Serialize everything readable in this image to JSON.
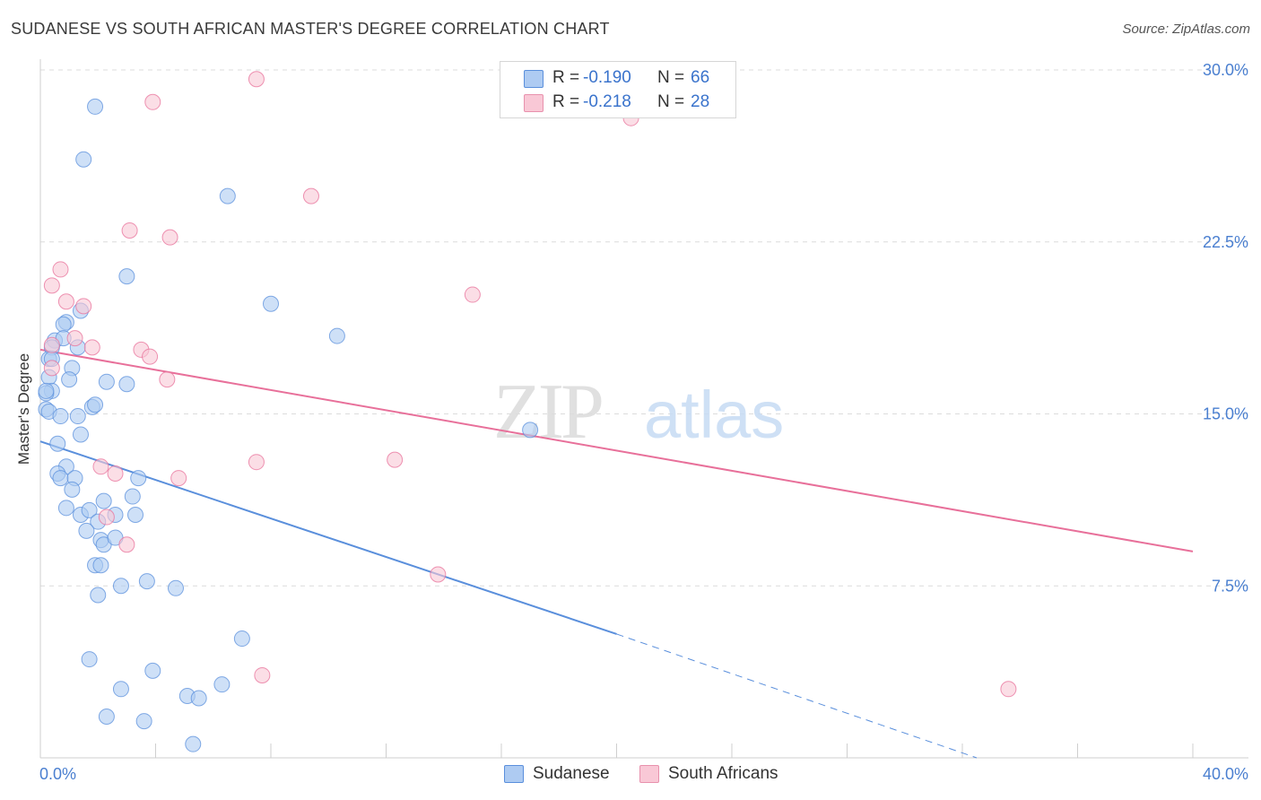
{
  "title": "SUDANESE VS SOUTH AFRICAN MASTER'S DEGREE CORRELATION CHART",
  "source": "Source: ZipAtlas.com",
  "watermark": {
    "zip": "ZIP",
    "atlas": "atlas"
  },
  "legend": {
    "r_label": "R =",
    "n_label": "N =",
    "rows": [
      {
        "name": "Sudanese",
        "r": "-0.190",
        "n": "66",
        "fill": "#aecbf2",
        "stroke": "#5a8fdc"
      },
      {
        "name": "South Africans",
        "r": "-0.218",
        "n": "28",
        "fill": "#f9c8d6",
        "stroke": "#e891ad"
      }
    ]
  },
  "chart_data": {
    "type": "scatter",
    "title": "SUDANESE VS SOUTH AFRICAN MASTER'S DEGREE CORRELATION CHART",
    "xlabel": "",
    "ylabel": "Master's Degree",
    "xlim": [
      0,
      40
    ],
    "ylim": [
      0,
      30
    ],
    "x_tick_labels": [
      "0.0%",
      "40.0%"
    ],
    "y_ticks": [
      7.5,
      15.0,
      22.5,
      30.0
    ],
    "y_tick_labels": [
      "7.5%",
      "15.0%",
      "22.5%",
      "30.0%"
    ],
    "grid": true,
    "legend_position": "top-center",
    "series": [
      {
        "name": "Sudanese",
        "color": "#5a8fdc",
        "fill": "#aecbf2",
        "points": [
          [
            1.9,
            28.4
          ],
          [
            1.5,
            26.1
          ],
          [
            6.5,
            24.5
          ],
          [
            3.0,
            21.0
          ],
          [
            8.0,
            19.8
          ],
          [
            10.3,
            18.4
          ],
          [
            1.4,
            19.5
          ],
          [
            0.9,
            19.0
          ],
          [
            0.8,
            18.9
          ],
          [
            0.5,
            18.2
          ],
          [
            0.4,
            17.9
          ],
          [
            1.3,
            17.9
          ],
          [
            0.8,
            18.3
          ],
          [
            0.3,
            17.4
          ],
          [
            1.1,
            17.0
          ],
          [
            0.3,
            16.6
          ],
          [
            1.0,
            16.5
          ],
          [
            2.3,
            16.4
          ],
          [
            3.0,
            16.3
          ],
          [
            0.4,
            16.0
          ],
          [
            0.2,
            15.9
          ],
          [
            0.2,
            15.2
          ],
          [
            0.3,
            15.1
          ],
          [
            1.8,
            15.3
          ],
          [
            1.9,
            15.4
          ],
          [
            0.7,
            14.9
          ],
          [
            1.3,
            14.9
          ],
          [
            1.4,
            14.1
          ],
          [
            0.6,
            13.7
          ],
          [
            17.0,
            14.3
          ],
          [
            0.9,
            12.7
          ],
          [
            0.6,
            12.4
          ],
          [
            0.7,
            12.2
          ],
          [
            1.2,
            12.2
          ],
          [
            3.4,
            12.2
          ],
          [
            1.1,
            11.7
          ],
          [
            2.2,
            11.2
          ],
          [
            3.2,
            11.4
          ],
          [
            0.9,
            10.9
          ],
          [
            1.4,
            10.6
          ],
          [
            1.7,
            10.8
          ],
          [
            2.6,
            10.6
          ],
          [
            3.3,
            10.6
          ],
          [
            2.0,
            10.3
          ],
          [
            1.6,
            9.9
          ],
          [
            2.1,
            9.5
          ],
          [
            2.2,
            9.3
          ],
          [
            2.6,
            9.6
          ],
          [
            1.9,
            8.4
          ],
          [
            2.1,
            8.4
          ],
          [
            3.7,
            7.7
          ],
          [
            2.8,
            7.5
          ],
          [
            4.7,
            7.4
          ],
          [
            2.0,
            7.1
          ],
          [
            7.0,
            5.2
          ],
          [
            1.7,
            4.3
          ],
          [
            3.9,
            3.8
          ],
          [
            2.8,
            3.0
          ],
          [
            5.1,
            2.7
          ],
          [
            5.5,
            2.6
          ],
          [
            6.3,
            3.2
          ],
          [
            2.3,
            1.8
          ],
          [
            3.6,
            1.6
          ],
          [
            5.3,
            0.6
          ],
          [
            0.4,
            17.4
          ],
          [
            0.2,
            16.0
          ]
        ],
        "trend": {
          "x0": 0,
          "y0": 13.8,
          "x1": 20,
          "y1": 5.4,
          "dash_to_x": 32.5,
          "dash_to_y": 0
        }
      },
      {
        "name": "South Africans",
        "color": "#e8709a",
        "fill": "#f9c8d6",
        "points": [
          [
            7.5,
            29.6
          ],
          [
            3.9,
            28.6
          ],
          [
            20.5,
            27.9
          ],
          [
            9.4,
            24.5
          ],
          [
            3.1,
            23.0
          ],
          [
            4.5,
            22.7
          ],
          [
            0.7,
            21.3
          ],
          [
            0.4,
            20.6
          ],
          [
            15.0,
            20.2
          ],
          [
            0.9,
            19.9
          ],
          [
            1.5,
            19.7
          ],
          [
            0.4,
            18.0
          ],
          [
            1.2,
            18.3
          ],
          [
            1.8,
            17.9
          ],
          [
            3.5,
            17.8
          ],
          [
            3.8,
            17.5
          ],
          [
            0.4,
            17.0
          ],
          [
            4.4,
            16.5
          ],
          [
            2.1,
            12.7
          ],
          [
            2.6,
            12.4
          ],
          [
            4.8,
            12.2
          ],
          [
            7.5,
            12.9
          ],
          [
            12.3,
            13.0
          ],
          [
            2.3,
            10.5
          ],
          [
            3.0,
            9.3
          ],
          [
            13.8,
            8.0
          ],
          [
            7.7,
            3.6
          ],
          [
            33.6,
            3.0
          ]
        ],
        "trend": {
          "x0": 0,
          "y0": 17.8,
          "x1": 40,
          "y1": 9.0
        }
      }
    ]
  }
}
